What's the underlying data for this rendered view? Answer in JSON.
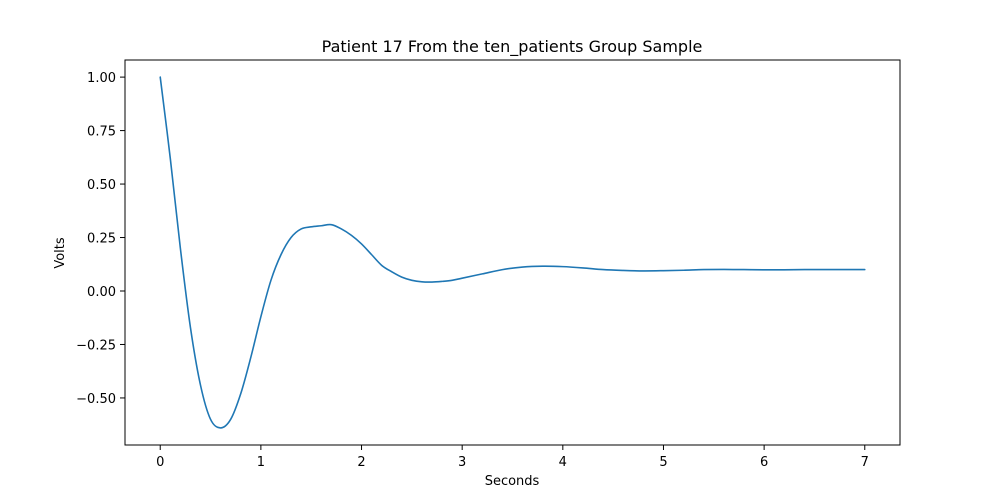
{
  "chart_data": {
    "type": "line",
    "title": "Patient 17 From the ten_patients Group Sample",
    "xlabel": "Seconds",
    "ylabel": "Volts",
    "xlim": [
      -0.35,
      7.35
    ],
    "ylim": [
      -0.72,
      1.08
    ],
    "x_ticks": [
      0,
      1,
      2,
      3,
      4,
      5,
      6,
      7
    ],
    "x_tick_labels": [
      "0",
      "1",
      "2",
      "3",
      "4",
      "5",
      "6",
      "7"
    ],
    "y_ticks": [
      -0.5,
      -0.25,
      0.0,
      0.25,
      0.5,
      0.75,
      1.0
    ],
    "y_tick_labels": [
      "−0.50",
      "−0.25",
      "0.00",
      "0.25",
      "0.50",
      "0.75",
      "1.00"
    ],
    "grid": false,
    "series": [
      {
        "color": "#1f77b4",
        "x": [
          0,
          0.1,
          0.2,
          0.3,
          0.4,
          0.5,
          0.6,
          0.7,
          0.8,
          0.9,
          1.0,
          1.1,
          1.2,
          1.3,
          1.4,
          1.5,
          1.6,
          1.7,
          1.8,
          1.9,
          2.0,
          2.1,
          2.2,
          2.3,
          2.4,
          2.5,
          2.6,
          2.7,
          2.8,
          2.9,
          3.0,
          3.2,
          3.4,
          3.6,
          3.8,
          4.0,
          4.2,
          4.4,
          4.6,
          4.8,
          5.0,
          5.2,
          5.4,
          5.6,
          5.8,
          6.0,
          6.2,
          6.4,
          6.6,
          6.8,
          7.0
        ],
        "y": [
          1.0,
          0.62,
          0.2,
          -0.17,
          -0.44,
          -0.6,
          -0.64,
          -0.6,
          -0.48,
          -0.31,
          -0.12,
          0.05,
          0.17,
          0.25,
          0.29,
          0.3,
          0.305,
          0.31,
          0.29,
          0.26,
          0.22,
          0.17,
          0.12,
          0.09,
          0.065,
          0.05,
          0.043,
          0.042,
          0.045,
          0.05,
          0.06,
          0.08,
          0.1,
          0.112,
          0.116,
          0.114,
          0.108,
          0.1,
          0.096,
          0.094,
          0.095,
          0.097,
          0.1,
          0.101,
          0.1,
          0.099,
          0.099,
          0.1,
          0.1,
          0.1,
          0.1
        ]
      }
    ]
  }
}
